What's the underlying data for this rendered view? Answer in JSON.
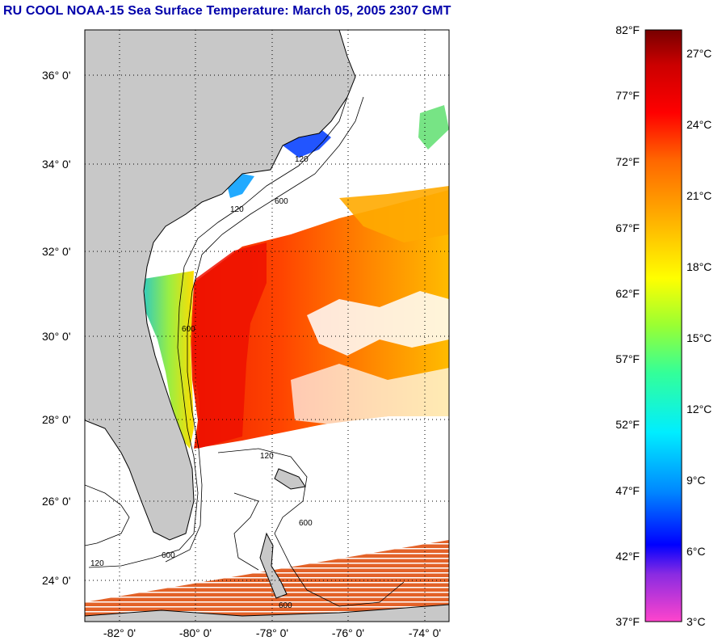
{
  "title": "RU COOL  NOAA-15  Sea Surface Temperature:  March 05, 2005 2307 GMT",
  "map": {
    "lat_labels": [
      "36° 0'",
      "34° 0'",
      "32° 0'",
      "30° 0'",
      "28° 0'",
      "26° 0'",
      "24° 0'"
    ],
    "lon_labels": [
      "-82° 0'",
      "-80° 0'",
      "-78° 0'",
      "-76° 0'",
      "-74° 0'"
    ],
    "contour_labels": [
      "120",
      "600",
      "600",
      "120",
      "600",
      "120",
      "600",
      "120",
      "600"
    ],
    "land_color": "#c8c8c8",
    "cloud_color": "#ffffff"
  },
  "colorbar": {
    "f_labels": [
      "82°F",
      "77°F",
      "72°F",
      "67°F",
      "62°F",
      "57°F",
      "52°F",
      "47°F",
      "42°F",
      "37°F"
    ],
    "c_labels": [
      "27°C",
      "24°C",
      "21°C",
      "18°C",
      "15°C",
      "12°C",
      "9°C",
      "6°C",
      "3°C"
    ],
    "stops": [
      "#ff44cc",
      "#8a2be2",
      "#0000ff",
      "#0099ff",
      "#00ffff",
      "#33ff99",
      "#99ff33",
      "#ffff00",
      "#ffb000",
      "#ff6600",
      "#ff0000",
      "#cc0000",
      "#770000"
    ]
  }
}
